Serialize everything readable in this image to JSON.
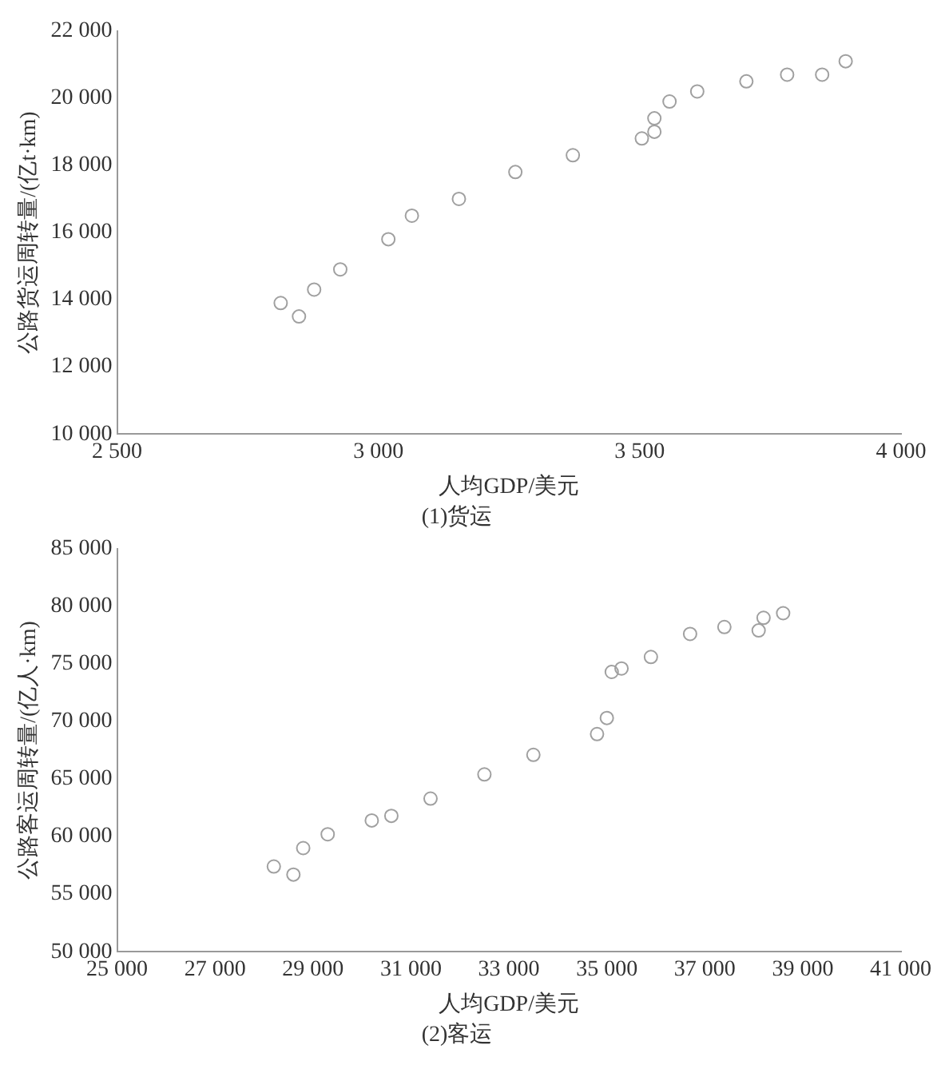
{
  "chart_data": [
    {
      "type": "scatter",
      "title": "(1)货运",
      "xlabel": "人均GDP/美元",
      "ylabel": "公路货运周转量/(亿t·km)",
      "x": [
        2813,
        2848,
        2877,
        2927,
        3019,
        3064,
        3154,
        3262,
        3372,
        3504,
        3528,
        3528,
        3557,
        3610,
        3704,
        3782,
        3849,
        3894
      ],
      "series": [
        {
          "color": "#a0a0a0",
          "values": [
            13900,
            13500,
            14300,
            14900,
            15800,
            16500,
            17000,
            17800,
            18300,
            18800,
            19000,
            19400,
            19900,
            20200,
            20500,
            20700,
            20700,
            21100
          ]
        }
      ],
      "xlim": [
        2500,
        4000
      ],
      "ylim": [
        10000,
        22000
      ],
      "xticks": [
        {
          "value": 2500,
          "label": "2 500"
        },
        {
          "value": 3000,
          "label": "3 000"
        },
        {
          "value": 3500,
          "label": "3 500"
        },
        {
          "value": 4000,
          "label": "4 000"
        }
      ],
      "yticks": [
        {
          "value": 10000,
          "label": "10 000"
        },
        {
          "value": 12000,
          "label": "12 000"
        },
        {
          "value": 14000,
          "label": "14 000"
        },
        {
          "value": 16000,
          "label": "16 000"
        },
        {
          "value": 18000,
          "label": "18 000"
        },
        {
          "value": 20000,
          "label": "20 000"
        },
        {
          "value": 22000,
          "label": "22 000"
        }
      ],
      "marker": "circle",
      "grid": false,
      "legend": false
    },
    {
      "type": "scatter",
      "title": "(2)客运",
      "xlabel": "人均GDP/美元",
      "ylabel": "公路客运周转量/(亿人·km)",
      "x": [
        28200,
        28600,
        28800,
        29300,
        30200,
        30600,
        31400,
        32500,
        33500,
        34800,
        35000,
        35100,
        35300,
        35900,
        36700,
        37400,
        38100,
        38200,
        38600
      ],
      "series": [
        {
          "color": "#a0a0a0",
          "values": [
            57400,
            56700,
            59000,
            60200,
            61400,
            61800,
            63300,
            65400,
            67100,
            68900,
            70300,
            74300,
            74600,
            75600,
            77600,
            78200,
            77900,
            79000,
            79400
          ]
        }
      ],
      "xlim": [
        25000,
        41000
      ],
      "ylim": [
        50000,
        85000
      ],
      "xticks": [
        {
          "value": 25000,
          "label": "25 000"
        },
        {
          "value": 27000,
          "label": "27 000"
        },
        {
          "value": 29000,
          "label": "29 000"
        },
        {
          "value": 31000,
          "label": "31 000"
        },
        {
          "value": 33000,
          "label": "33 000"
        },
        {
          "value": 35000,
          "label": "35 000"
        },
        {
          "value": 37000,
          "label": "37 000"
        },
        {
          "value": 39000,
          "label": "39 000"
        },
        {
          "value": 41000,
          "label": "41 000"
        }
      ],
      "yticks": [
        {
          "value": 50000,
          "label": "50 000"
        },
        {
          "value": 55000,
          "label": "55 000"
        },
        {
          "value": 60000,
          "label": "60 000"
        },
        {
          "value": 65000,
          "label": "65 000"
        },
        {
          "value": 70000,
          "label": "70 000"
        },
        {
          "value": 75000,
          "label": "75 000"
        },
        {
          "value": 80000,
          "label": "80 000"
        },
        {
          "value": 85000,
          "label": "85 000"
        }
      ],
      "marker": "circle",
      "grid": false,
      "legend": false
    }
  ]
}
